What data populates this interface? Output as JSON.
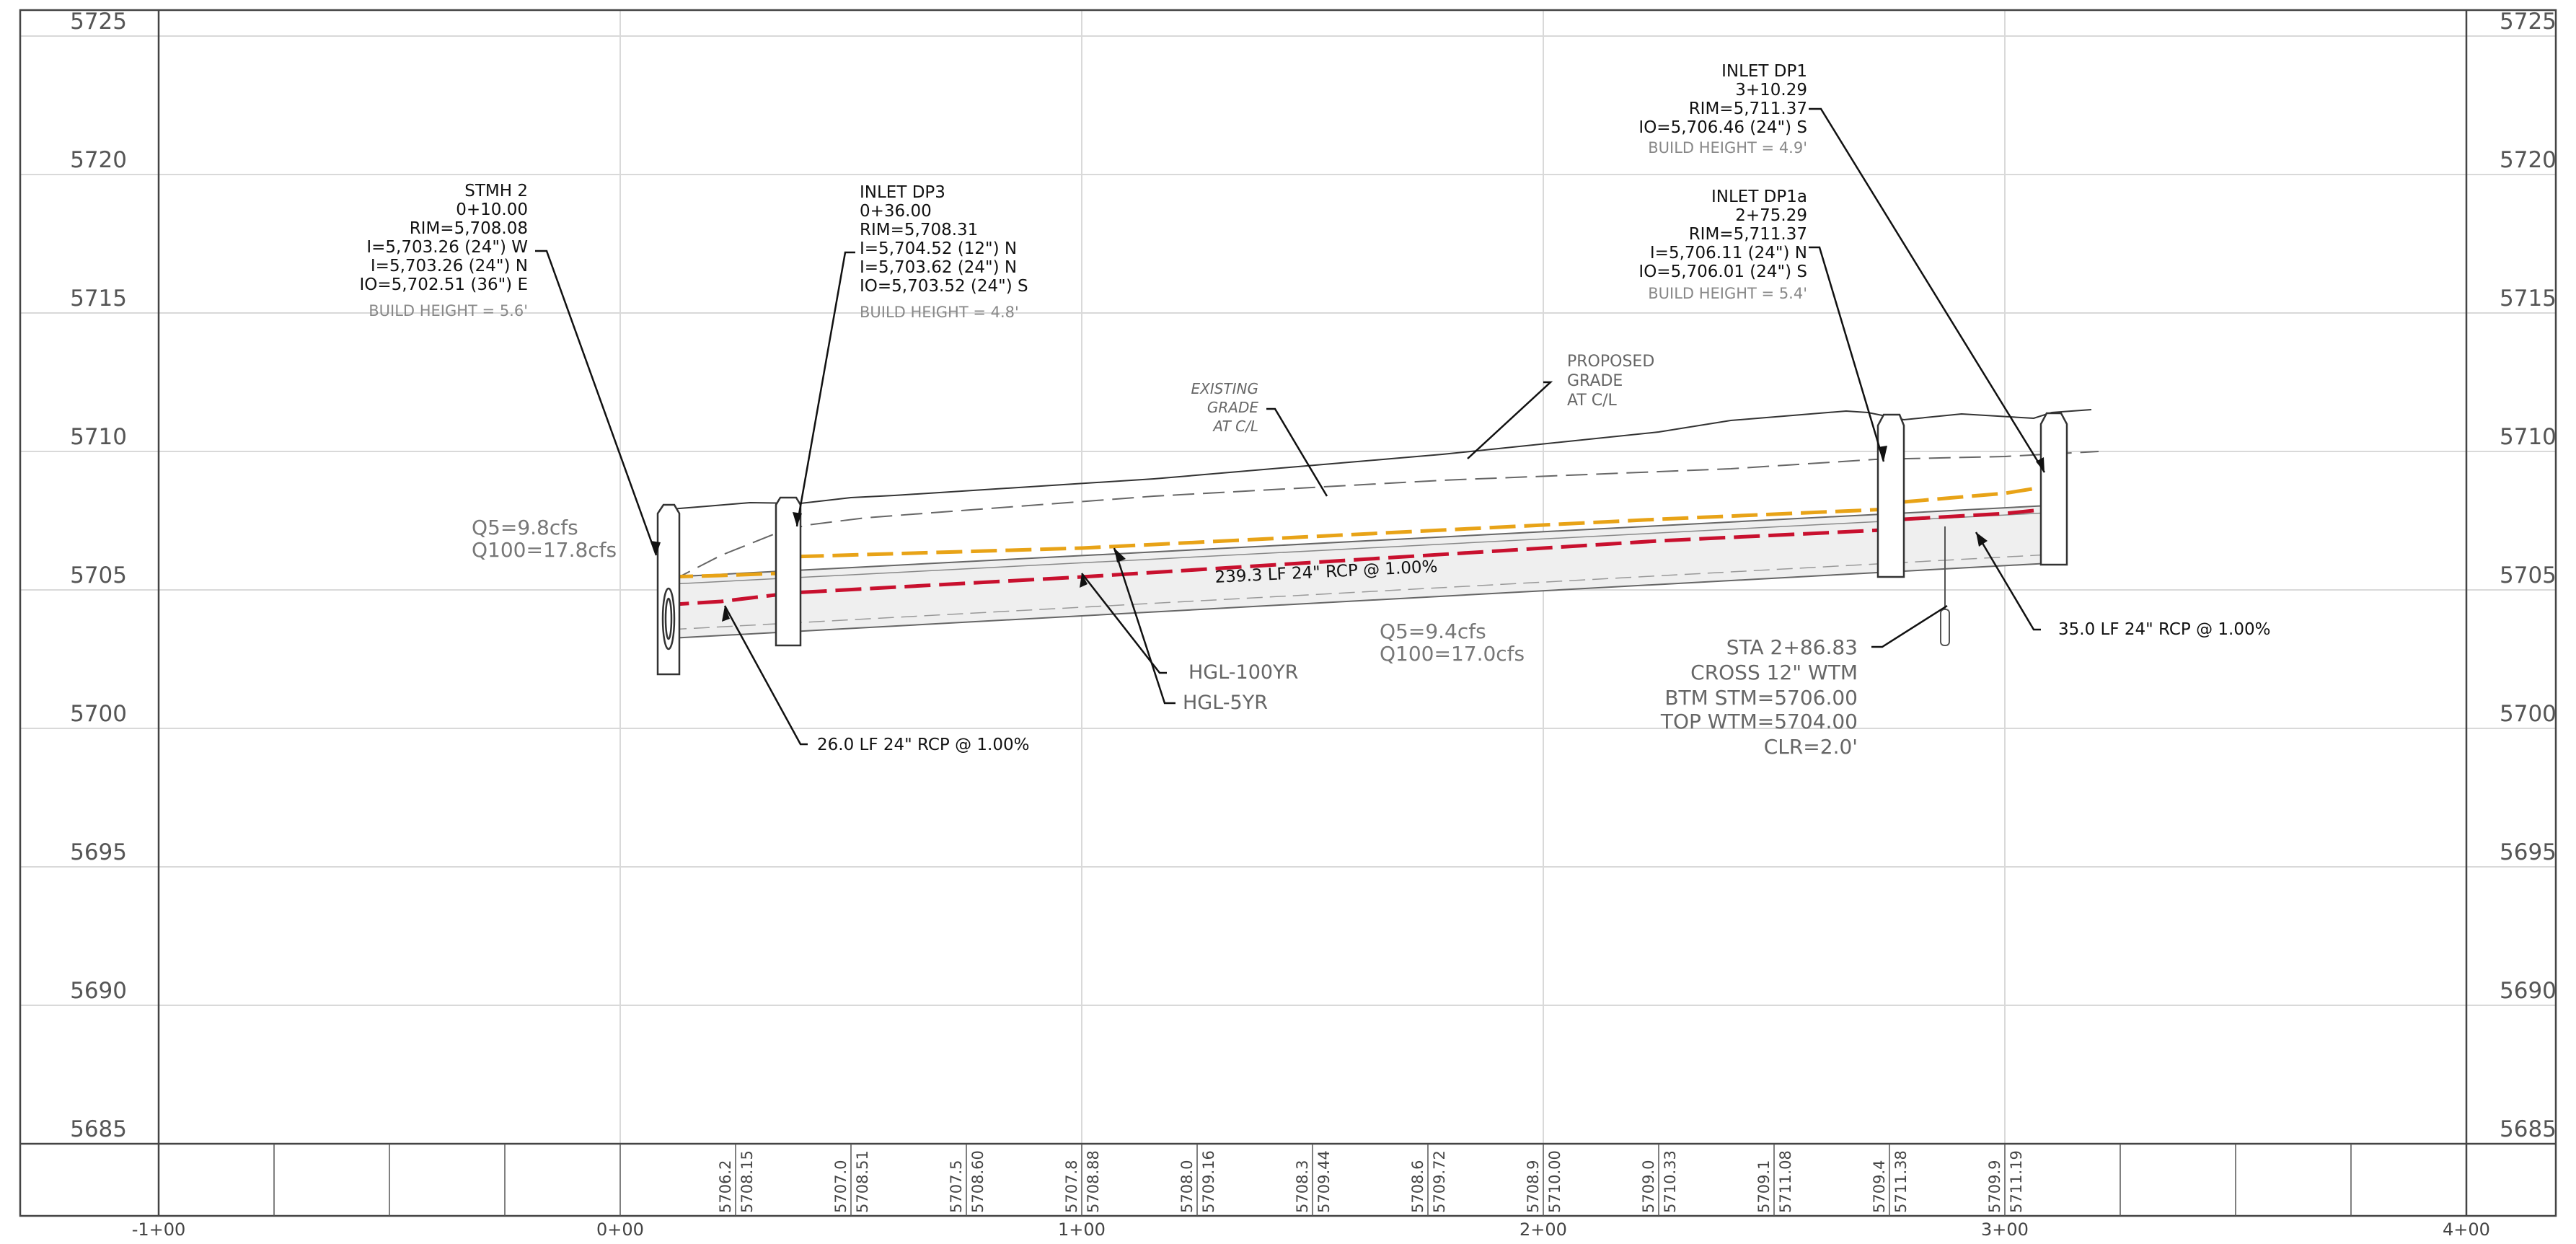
{
  "elevations": {
    "left": [
      "5725",
      "5720",
      "5715",
      "5710",
      "5705",
      "5700",
      "5695",
      "5690",
      "5685"
    ],
    "right": [
      "5725",
      "5720",
      "5715",
      "5710",
      "5705",
      "5700",
      "5695",
      "5690",
      "5685"
    ]
  },
  "stations": [
    "-1+00",
    "0+00",
    "1+00",
    "2+00",
    "3+00",
    "4+00"
  ],
  "grade_table": [
    {
      "existing": "5706.2",
      "proposed": "5708.15"
    },
    {
      "existing": "5707.0",
      "proposed": "5708.51"
    },
    {
      "existing": "5707.5",
      "proposed": "5708.60"
    },
    {
      "existing": "5707.8",
      "proposed": "5708.88"
    },
    {
      "existing": "5708.0",
      "proposed": "5709.16"
    },
    {
      "existing": "5708.3",
      "proposed": "5709.44"
    },
    {
      "existing": "5708.6",
      "proposed": "5709.72"
    },
    {
      "existing": "5708.9",
      "proposed": "5710.00"
    },
    {
      "existing": "5709.0",
      "proposed": "5710.33"
    },
    {
      "existing": "5709.1",
      "proposed": "5711.08"
    },
    {
      "existing": "5709.4",
      "proposed": "5711.38"
    },
    {
      "existing": "5709.9",
      "proposed": "5711.19"
    }
  ],
  "structures": {
    "stmh2": {
      "lines": [
        "STMH 2",
        "0+10.00",
        "RIM=5,708.08",
        "I=5,703.26 (24\") W",
        "I=5,703.26 (24\") N",
        "IO=5,702.51 (36\") E"
      ],
      "build_height": "BUILD HEIGHT = 5.6'"
    },
    "dp3": {
      "lines": [
        "INLET DP3",
        "0+36.00",
        "RIM=5,708.31",
        "I=5,704.52 (12\") N",
        "I=5,703.62 (24\") N",
        "IO=5,703.52 (24\") S"
      ],
      "build_height": "BUILD HEIGHT = 4.8'"
    },
    "dp1": {
      "lines": [
        "INLET DP1",
        "3+10.29",
        "RIM=5,711.37",
        "IO=5,706.46 (24\") S"
      ],
      "build_height": "BUILD HEIGHT = 4.9'"
    },
    "dp1a": {
      "lines": [
        "INLET DP1a",
        "2+75.29",
        "RIM=5,711.37",
        "I=5,706.11 (24\") N",
        "IO=5,706.01 (24\") S"
      ],
      "build_height": "BUILD HEIGHT = 5.4'"
    }
  },
  "notes": {
    "flow_left": [
      "Q5=9.8cfs",
      "Q100=17.8cfs"
    ],
    "flow_mid": [
      "Q5=9.4cfs",
      "Q100=17.0cfs"
    ],
    "existing_grade": [
      "EXISTING",
      "GRADE",
      "AT C/L"
    ],
    "proposed_grade": [
      "PROPOSED",
      "GRADE",
      "AT C/L"
    ],
    "pipe_main": "239.3 LF 24\" RCP  @ 1.00%",
    "pipe_left": "26.0 LF 24\" RCP  @ 1.00%",
    "pipe_right": "35.0 LF 24\" RCP  @ 1.00%",
    "hgl100": "HGL-100YR",
    "hgl5": "HGL-5YR",
    "crossing": [
      "STA 2+86.83",
      "CROSS 12\" WTM",
      "BTM STM=5706.00",
      "TOP WTM=5704.00",
      "CLR=2.0'"
    ]
  },
  "colors": {
    "hgl5": "#c8102e",
    "hgl100": "#e8a317",
    "grid": "#d8d8d8",
    "line": "#222222"
  }
}
